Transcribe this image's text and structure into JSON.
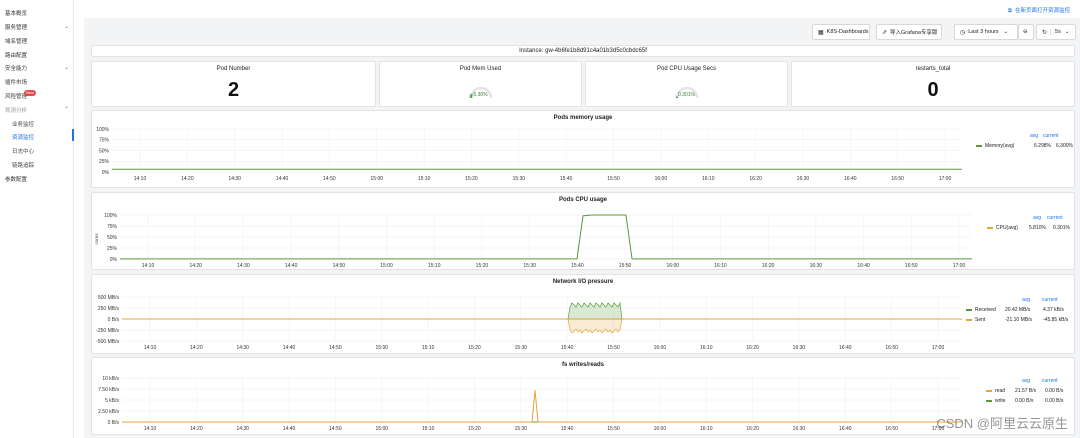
{
  "sidebar": {
    "items": [
      {
        "label": "基本概览"
      },
      {
        "label": "服务管理"
      },
      {
        "label": "域名管理"
      },
      {
        "label": "路由配置"
      },
      {
        "label": "安全能力"
      },
      {
        "label": "插件市场"
      },
      {
        "label": "风险管理"
      },
      {
        "label": "观测分析"
      },
      {
        "label": "业务监控"
      },
      {
        "label": "资源监控"
      },
      {
        "label": "日志中心"
      },
      {
        "label": "链路追踪"
      },
      {
        "label": "参数配置"
      }
    ],
    "new_badge": "New"
  },
  "topbar": {
    "ext_link": "在新页面打开资源监控"
  },
  "toolbar": {
    "k8s_button": "K8S-Dashboards",
    "grafana_button": "导入Grafana专享版",
    "time_range": "Last 3 hours",
    "refresh_interval": "5s"
  },
  "instance": {
    "label": "Instance: gw-4b6fe1b8d91c4a01b3d5c0cbdc65f"
  },
  "stats": {
    "pod_number": {
      "title": "Pod Number",
      "value": "2"
    },
    "pod_mem": {
      "title": "Pod Mem Used",
      "value": "6.30%"
    },
    "pod_cpu": {
      "title": "Pod CPU Usage Secs",
      "value": "0.301%"
    },
    "restarts": {
      "title": "restarts_total",
      "value": "0"
    }
  },
  "time_ticks": [
    "14:10",
    "14:20",
    "14:30",
    "14:40",
    "14:50",
    "15:00",
    "15:10",
    "15:20",
    "15:30",
    "15:40",
    "15:50",
    "16:00",
    "16:10",
    "16:20",
    "16:30",
    "16:40",
    "16:50",
    "17:00"
  ],
  "panels": {
    "memory": {
      "title": "Pods memory usage",
      "y_ticks": [
        "100%",
        "75%",
        "50%",
        "25%",
        "0%"
      ],
      "legend_head": [
        "avg",
        "current"
      ],
      "series": [
        {
          "name": "Memory(avg)",
          "avg": "6.298%",
          "current": "6.300%",
          "color": "#5a9a3c"
        }
      ]
    },
    "cpu": {
      "title": "Pods CPU usage",
      "ylabel": "cores",
      "y_ticks": [
        "100%",
        "75%",
        "50%",
        "25%",
        "0%"
      ],
      "legend_head": [
        "avg",
        "current"
      ],
      "series": [
        {
          "name": "CPU(avg)",
          "avg": "5.810%",
          "current": "0.301%",
          "color": "#e8a33a"
        }
      ]
    },
    "network": {
      "title": "Network I/O pressure",
      "y_ticks": [
        "500 MB/s",
        "250 MB/s",
        "0 B/s",
        "-250 MB/s",
        "-500 MB/s"
      ],
      "legend_head": [
        "avg",
        "current"
      ],
      "series": [
        {
          "name": "Received",
          "avg": "20.42 MB/s",
          "current": "4.37 kB/s",
          "color": "#5a9a3c"
        },
        {
          "name": "Sent",
          "avg": "-21.10 MB/s",
          "current": "-45.85 kB/s",
          "color": "#e8a33a"
        }
      ]
    },
    "fs": {
      "title": "fs writes/reads",
      "y_ticks": [
        "10 kB/s",
        "7.50 kB/s",
        "5 kB/s",
        "2.50 kB/s",
        "0 B/s"
      ],
      "legend_head": [
        "avg",
        "current"
      ],
      "series": [
        {
          "name": "read",
          "avg": "21.57 B/s",
          "current": "0.00 B/s",
          "color": "#e8a33a"
        },
        {
          "name": "write",
          "avg": "0.00 B/s",
          "current": "0.00 B/s",
          "color": "#5a9a3c"
        }
      ]
    }
  },
  "watermark": "CSDN @阿里云云原生"
}
